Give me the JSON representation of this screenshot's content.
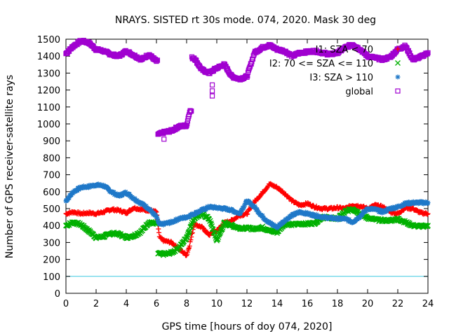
{
  "chart_data": {
    "type": "scatter",
    "title": "NRAYS. SISTED rt 30s mode. 074, 2020. Mask 30 deg",
    "xlabel": "GPS time [hours of doy 074, 2020]",
    "ylabel": "Number of GPS receiver-satellite rays",
    "xlim": [
      0,
      24
    ],
    "ylim": [
      0,
      1500
    ],
    "xticks": [
      0,
      2,
      4,
      6,
      8,
      10,
      12,
      14,
      16,
      18,
      20,
      22,
      24
    ],
    "yticks": [
      0,
      100,
      200,
      300,
      400,
      500,
      600,
      700,
      800,
      900,
      1000,
      1100,
      1200,
      1300,
      1400,
      1500
    ],
    "legend_position": "top-right",
    "reference_line": {
      "y": 100,
      "color": "#3ec8e0"
    },
    "series": [
      {
        "name": "I1: SZA < 70",
        "color": "#ff0000",
        "marker": "plus",
        "points": [
          [
            0,
            470
          ],
          [
            0.5,
            480
          ],
          [
            1,
            470
          ],
          [
            1.5,
            475
          ],
          [
            2,
            470
          ],
          [
            2.5,
            480
          ],
          [
            3,
            495
          ],
          [
            3.5,
            490
          ],
          [
            4,
            475
          ],
          [
            4.5,
            505
          ],
          [
            5,
            495
          ],
          [
            5.5,
            490
          ],
          [
            6,
            480
          ],
          [
            6.2,
            330
          ],
          [
            6.5,
            310
          ],
          [
            7,
            300
          ],
          [
            7.5,
            260
          ],
          [
            8,
            225
          ],
          [
            8.2,
            285
          ],
          [
            8.5,
            410
          ],
          [
            9,
            390
          ],
          [
            9.5,
            345
          ],
          [
            10,
            370
          ],
          [
            10.5,
            415
          ],
          [
            11,
            430
          ],
          [
            11.5,
            460
          ],
          [
            12,
            470
          ],
          [
            12.5,
            540
          ],
          [
            13,
            590
          ],
          [
            13.5,
            645
          ],
          [
            14,
            625
          ],
          [
            14.5,
            590
          ],
          [
            15,
            545
          ],
          [
            15.5,
            520
          ],
          [
            16,
            530
          ],
          [
            16.5,
            510
          ],
          [
            17,
            500
          ],
          [
            17.5,
            500
          ],
          [
            18,
            505
          ],
          [
            18.5,
            500
          ],
          [
            19,
            520
          ],
          [
            19.5,
            515
          ],
          [
            20,
            500
          ],
          [
            20.5,
            520
          ],
          [
            21,
            510
          ],
          [
            21.5,
            480
          ],
          [
            22,
            470
          ],
          [
            22.5,
            505
          ],
          [
            23,
            500
          ],
          [
            23.5,
            475
          ],
          [
            24,
            470
          ]
        ]
      },
      {
        "name": "I2: 70 <= SZA <= 110",
        "color": "#00b000",
        "marker": "cross",
        "points": [
          [
            0,
            400
          ],
          [
            0.5,
            420
          ],
          [
            1,
            405
          ],
          [
            1.5,
            370
          ],
          [
            2,
            330
          ],
          [
            2.5,
            335
          ],
          [
            3,
            355
          ],
          [
            3.5,
            350
          ],
          [
            4,
            330
          ],
          [
            4.5,
            340
          ],
          [
            5,
            365
          ],
          [
            5.5,
            420
          ],
          [
            6,
            410
          ],
          [
            6.2,
            235
          ],
          [
            6.5,
            230
          ],
          [
            7,
            240
          ],
          [
            7.5,
            270
          ],
          [
            8,
            330
          ],
          [
            8.5,
            445
          ],
          [
            9,
            470
          ],
          [
            9.5,
            440
          ],
          [
            10,
            310
          ],
          [
            10.5,
            415
          ],
          [
            11,
            400
          ],
          [
            11.5,
            385
          ],
          [
            12,
            385
          ],
          [
            12.5,
            380
          ],
          [
            13,
            390
          ],
          [
            13.5,
            370
          ],
          [
            14,
            360
          ],
          [
            14.5,
            410
          ],
          [
            15,
            405
          ],
          [
            15.5,
            410
          ],
          [
            16,
            410
          ],
          [
            16.5,
            415
          ],
          [
            17,
            450
          ],
          [
            17.5,
            445
          ],
          [
            18,
            440
          ],
          [
            18.5,
            480
          ],
          [
            19,
            500
          ],
          [
            19.5,
            470
          ],
          [
            20,
            445
          ],
          [
            20.5,
            435
          ],
          [
            21,
            430
          ],
          [
            21.5,
            430
          ],
          [
            22,
            440
          ],
          [
            22.5,
            420
          ],
          [
            23,
            400
          ],
          [
            23.5,
            395
          ],
          [
            24,
            400
          ]
        ]
      },
      {
        "name": "I3: SZA > 110",
        "color": "#1f78c8",
        "marker": "star",
        "points": [
          [
            0,
            545
          ],
          [
            0.5,
            600
          ],
          [
            1,
            625
          ],
          [
            1.5,
            630
          ],
          [
            2,
            640
          ],
          [
            2.5,
            635
          ],
          [
            3,
            600
          ],
          [
            3.5,
            575
          ],
          [
            4,
            595
          ],
          [
            4.5,
            560
          ],
          [
            5,
            530
          ],
          [
            5.5,
            500
          ],
          [
            6,
            450
          ],
          [
            6.2,
            405
          ],
          [
            6.5,
            410
          ],
          [
            7,
            420
          ],
          [
            7.5,
            440
          ],
          [
            8,
            450
          ],
          [
            8.5,
            470
          ],
          [
            9,
            490
          ],
          [
            9.5,
            510
          ],
          [
            10,
            505
          ],
          [
            10.5,
            500
          ],
          [
            11,
            490
          ],
          [
            11.5,
            470
          ],
          [
            12,
            545
          ],
          [
            12.5,
            510
          ],
          [
            13,
            455
          ],
          [
            13.5,
            415
          ],
          [
            14,
            390
          ],
          [
            14.5,
            430
          ],
          [
            15,
            460
          ],
          [
            15.5,
            480
          ],
          [
            16,
            470
          ],
          [
            16.5,
            460
          ],
          [
            17,
            450
          ],
          [
            17.5,
            445
          ],
          [
            18,
            440
          ],
          [
            18.5,
            440
          ],
          [
            19,
            420
          ],
          [
            19.5,
            455
          ],
          [
            20,
            500
          ],
          [
            20.5,
            495
          ],
          [
            21,
            480
          ],
          [
            21.5,
            500
          ],
          [
            22,
            510
          ],
          [
            22.5,
            530
          ],
          [
            23,
            535
          ],
          [
            23.5,
            535
          ],
          [
            24,
            535
          ]
        ]
      },
      {
        "name": "global",
        "color": "#a000d0",
        "marker": "square",
        "points": [
          [
            0,
            1415
          ],
          [
            0.5,
            1460
          ],
          [
            1,
            1490
          ],
          [
            1.5,
            1480
          ],
          [
            2,
            1440
          ],
          [
            2.5,
            1430
          ],
          [
            3,
            1410
          ],
          [
            3.5,
            1400
          ],
          [
            4,
            1430
          ],
          [
            4.5,
            1405
          ],
          [
            5,
            1380
          ],
          [
            5.5,
            1410
          ],
          [
            6,
            1370
          ],
          [
            6.2,
            940
          ],
          [
            6.5,
            950
          ],
          [
            7,
            960
          ],
          [
            7.5,
            985
          ],
          [
            8,
            990
          ],
          [
            8.2,
            1075
          ],
          [
            8.5,
            1390
          ],
          [
            9,
            1320
          ],
          [
            9.5,
            1300
          ],
          [
            10,
            1330
          ],
          [
            10.5,
            1350
          ],
          [
            11,
            1280
          ],
          [
            11.5,
            1265
          ],
          [
            12,
            1280
          ],
          [
            12.5,
            1420
          ],
          [
            13,
            1450
          ],
          [
            13.5,
            1465
          ],
          [
            14,
            1440
          ],
          [
            14.5,
            1430
          ],
          [
            15,
            1400
          ],
          [
            15.5,
            1420
          ],
          [
            16,
            1425
          ],
          [
            16.5,
            1430
          ],
          [
            17,
            1420
          ],
          [
            17.5,
            1410
          ],
          [
            18,
            1420
          ],
          [
            18.5,
            1450
          ],
          [
            19,
            1470
          ],
          [
            19.5,
            1440
          ],
          [
            20,
            1400
          ],
          [
            20.5,
            1390
          ],
          [
            21,
            1380
          ],
          [
            21.5,
            1395
          ],
          [
            22,
            1440
          ],
          [
            22.5,
            1460
          ],
          [
            23,
            1380
          ],
          [
            23.5,
            1395
          ],
          [
            24,
            1420
          ]
        ]
      }
    ],
    "outliers": {
      "global": [
        [
          9.7,
          1230
        ],
        [
          9.7,
          1195
        ],
        [
          9.7,
          1165
        ],
        [
          6.5,
          910
        ]
      ]
    }
  }
}
